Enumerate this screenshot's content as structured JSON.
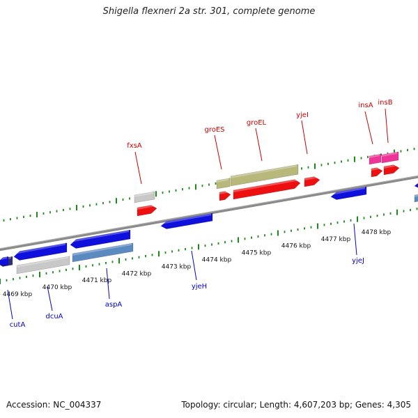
{
  "header": {
    "title": "Shigella flexneri 2a str. 301, complete genome"
  },
  "footer": {
    "accession": "Accession: NC_004337",
    "summary": "Topology: circular; Length: 4,607,203 bp; Genes: 4,305"
  },
  "colors": {
    "backbone": "#8a8a8a",
    "tick": "#1a8a1a",
    "label_forward": "#cc0000",
    "label_reverse": "#0000cc",
    "gene_blue": "#1010dd",
    "gene_red": "#ee1010",
    "gene_grey": "#c8c8c8",
    "gene_steel": "#5a8ac0",
    "gene_olive": "#b8b87a",
    "gene_pink": "#ee3399",
    "gene_navy": "#303070"
  },
  "ticks": {
    "major_labels": [
      "4469 kbp",
      "4470 kbp",
      "4471 kbp",
      "4472 kbp",
      "4473 kbp",
      "4474 kbp",
      "4475 kbp",
      "4476 kbp",
      "4477 kbp",
      "4478 kbp"
    ]
  },
  "genes": [
    {
      "name": "cutA",
      "strand": "reverse"
    },
    {
      "name": "dcuA",
      "strand": "reverse"
    },
    {
      "name": "aspA",
      "strand": "reverse"
    },
    {
      "name": "yjeH",
      "strand": "reverse"
    },
    {
      "name": "yjeJ",
      "strand": "reverse"
    },
    {
      "name": "fxsA",
      "strand": "forward"
    },
    {
      "name": "groES",
      "strand": "forward"
    },
    {
      "name": "groEL",
      "strand": "forward"
    },
    {
      "name": "yjeI",
      "strand": "forward"
    },
    {
      "name": "insA",
      "strand": "forward"
    },
    {
      "name": "insB",
      "strand": "forward"
    }
  ]
}
